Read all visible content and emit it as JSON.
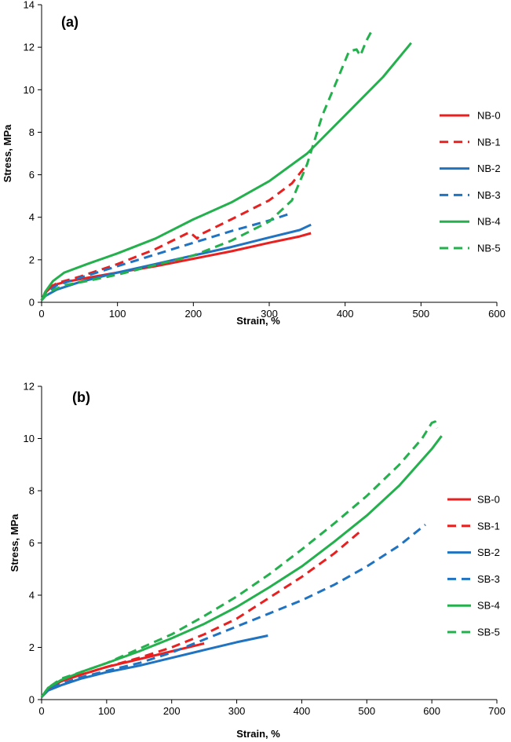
{
  "colors": {
    "red": "#e8201f",
    "blue": "#1f73c1",
    "green": "#23b04d"
  },
  "chart_data": [
    {
      "type": "line",
      "panel_label": "(a)",
      "xlabel": "Strain, %",
      "ylabel": "Stress, MPa",
      "xlim": [
        0,
        600
      ],
      "ylim": [
        0,
        14
      ],
      "xticks": [
        "0",
        "100",
        "200",
        "300",
        "400",
        "500",
        "600"
      ],
      "yticks": [
        "0",
        "2",
        "4",
        "6",
        "8",
        "10",
        "12",
        "14"
      ],
      "legend_position": "right",
      "series": [
        {
          "name": "NB-0",
          "color": "red",
          "dash": false,
          "points": [
            [
              0,
              0.1
            ],
            [
              5,
              0.45
            ],
            [
              15,
              0.8
            ],
            [
              30,
              0.95
            ],
            [
              60,
              1.15
            ],
            [
              100,
              1.4
            ],
            [
              150,
              1.7
            ],
            [
              200,
              2.05
            ],
            [
              250,
              2.4
            ],
            [
              300,
              2.8
            ],
            [
              340,
              3.1
            ],
            [
              355,
              3.25
            ]
          ]
        },
        {
          "name": "NB-1",
          "color": "red",
          "dash": true,
          "points": [
            [
              0,
              0.1
            ],
            [
              5,
              0.5
            ],
            [
              20,
              0.9
            ],
            [
              50,
              1.2
            ],
            [
              100,
              1.8
            ],
            [
              150,
              2.5
            ],
            [
              195,
              3.3
            ],
            [
              205,
              3.0
            ],
            [
              210,
              3.2
            ],
            [
              250,
              3.9
            ],
            [
              300,
              4.8
            ],
            [
              330,
              5.6
            ],
            [
              350,
              6.5
            ]
          ]
        },
        {
          "name": "NB-2",
          "color": "blue",
          "dash": false,
          "points": [
            [
              0,
              0.1
            ],
            [
              5,
              0.3
            ],
            [
              20,
              0.6
            ],
            [
              50,
              0.95
            ],
            [
              100,
              1.4
            ],
            [
              150,
              1.8
            ],
            [
              200,
              2.2
            ],
            [
              250,
              2.6
            ],
            [
              300,
              3.05
            ],
            [
              340,
              3.4
            ],
            [
              355,
              3.65
            ]
          ]
        },
        {
          "name": "NB-3",
          "color": "blue",
          "dash": true,
          "points": [
            [
              0,
              0.1
            ],
            [
              5,
              0.4
            ],
            [
              20,
              0.8
            ],
            [
              50,
              1.15
            ],
            [
              100,
              1.7
            ],
            [
              150,
              2.25
            ],
            [
              200,
              2.8
            ],
            [
              250,
              3.35
            ],
            [
              300,
              3.85
            ],
            [
              330,
              4.2
            ]
          ]
        },
        {
          "name": "NB-4",
          "color": "green",
          "dash": false,
          "points": [
            [
              0,
              0.1
            ],
            [
              5,
              0.5
            ],
            [
              15,
              1.0
            ],
            [
              30,
              1.4
            ],
            [
              60,
              1.8
            ],
            [
              100,
              2.3
            ],
            [
              150,
              3.0
            ],
            [
              200,
              3.9
            ],
            [
              250,
              4.7
            ],
            [
              300,
              5.7
            ],
            [
              350,
              7.0
            ],
            [
              400,
              8.8
            ],
            [
              450,
              10.6
            ],
            [
              480,
              11.9
            ],
            [
              487,
              12.2
            ]
          ]
        },
        {
          "name": "NB-5",
          "color": "green",
          "dash": true,
          "points": [
            [
              0,
              0.1
            ],
            [
              10,
              0.5
            ],
            [
              30,
              0.8
            ],
            [
              60,
              1.0
            ],
            [
              100,
              1.3
            ],
            [
              150,
              1.75
            ],
            [
              200,
              2.2
            ],
            [
              250,
              2.9
            ],
            [
              300,
              3.8
            ],
            [
              330,
              4.8
            ],
            [
              350,
              6.5
            ],
            [
              370,
              8.8
            ],
            [
              390,
              10.5
            ],
            [
              405,
              11.8
            ],
            [
              415,
              11.9
            ],
            [
              420,
              11.6
            ],
            [
              428,
              12.3
            ],
            [
              437,
              12.9
            ]
          ]
        }
      ]
    },
    {
      "type": "line",
      "panel_label": "(b)",
      "xlabel": "Strain, %",
      "ylabel": "Stress, MPa",
      "xlim": [
        0,
        700
      ],
      "ylim": [
        0,
        12
      ],
      "xticks": [
        "0",
        "100",
        "200",
        "300",
        "400",
        "500",
        "600",
        "700"
      ],
      "yticks": [
        "0",
        "2",
        "4",
        "6",
        "8",
        "10",
        "12"
      ],
      "legend_position": "right",
      "series": [
        {
          "name": "SB-0",
          "color": "red",
          "dash": false,
          "points": [
            [
              0,
              0.1
            ],
            [
              10,
              0.4
            ],
            [
              30,
              0.7
            ],
            [
              60,
              0.95
            ],
            [
              100,
              1.25
            ],
            [
              150,
              1.55
            ],
            [
              200,
              1.85
            ],
            [
              250,
              2.15
            ]
          ]
        },
        {
          "name": "SB-1",
          "color": "red",
          "dash": true,
          "points": [
            [
              0,
              0.1
            ],
            [
              10,
              0.4
            ],
            [
              30,
              0.7
            ],
            [
              60,
              0.95
            ],
            [
              100,
              1.25
            ],
            [
              150,
              1.6
            ],
            [
              200,
              2.0
            ],
            [
              250,
              2.5
            ],
            [
              300,
              3.1
            ],
            [
              350,
              3.9
            ],
            [
              400,
              4.7
            ],
            [
              450,
              5.6
            ],
            [
              488,
              6.4
            ]
          ]
        },
        {
          "name": "SB-2",
          "color": "blue",
          "dash": false,
          "points": [
            [
              0,
              0.1
            ],
            [
              10,
              0.35
            ],
            [
              30,
              0.55
            ],
            [
              60,
              0.8
            ],
            [
              100,
              1.05
            ],
            [
              150,
              1.3
            ],
            [
              200,
              1.6
            ],
            [
              250,
              1.9
            ],
            [
              300,
              2.2
            ],
            [
              348,
              2.45
            ]
          ]
        },
        {
          "name": "SB-3",
          "color": "blue",
          "dash": true,
          "points": [
            [
              0,
              0.1
            ],
            [
              10,
              0.4
            ],
            [
              30,
              0.6
            ],
            [
              60,
              0.85
            ],
            [
              100,
              1.1
            ],
            [
              150,
              1.4
            ],
            [
              200,
              1.8
            ],
            [
              250,
              2.3
            ],
            [
              300,
              2.8
            ],
            [
              350,
              3.3
            ],
            [
              400,
              3.8
            ],
            [
              450,
              4.4
            ],
            [
              500,
              5.1
            ],
            [
              550,
              5.9
            ],
            [
              590,
              6.7
            ]
          ]
        },
        {
          "name": "SB-4",
          "color": "green",
          "dash": false,
          "points": [
            [
              0,
              0.1
            ],
            [
              10,
              0.45
            ],
            [
              30,
              0.75
            ],
            [
              60,
              1.05
            ],
            [
              100,
              1.4
            ],
            [
              150,
              1.85
            ],
            [
              200,
              2.35
            ],
            [
              250,
              2.9
            ],
            [
              300,
              3.55
            ],
            [
              350,
              4.3
            ],
            [
              400,
              5.1
            ],
            [
              450,
              6.05
            ],
            [
              500,
              7.05
            ],
            [
              550,
              8.2
            ],
            [
              600,
              9.6
            ],
            [
              615,
              10.1
            ]
          ]
        },
        {
          "name": "SB-5",
          "color": "green",
          "dash": true,
          "points": [
            [
              0,
              0.1
            ],
            [
              10,
              0.45
            ],
            [
              30,
              0.8
            ],
            [
              60,
              1.05
            ],
            [
              100,
              1.4
            ],
            [
              150,
              1.95
            ],
            [
              200,
              2.5
            ],
            [
              250,
              3.2
            ],
            [
              300,
              3.95
            ],
            [
              350,
              4.8
            ],
            [
              400,
              5.75
            ],
            [
              450,
              6.75
            ],
            [
              500,
              7.8
            ],
            [
              550,
              9.0
            ],
            [
              585,
              10.0
            ],
            [
              600,
              10.6
            ],
            [
              605,
              10.65
            ],
            [
              608,
              10.4
            ]
          ]
        }
      ]
    }
  ]
}
